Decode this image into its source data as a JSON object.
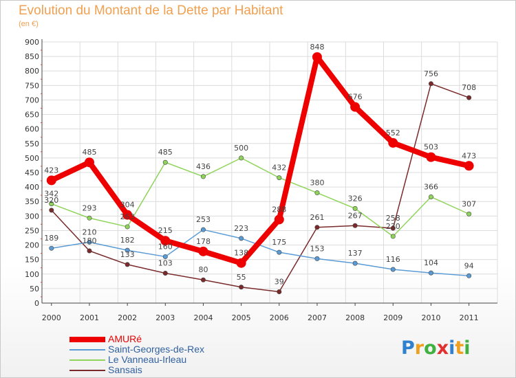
{
  "header": {
    "title": "Evolution du Montant de la Dette par Habitant",
    "subtitle": "(en €)"
  },
  "brand": {
    "letters": [
      "P",
      "r",
      "o",
      "x",
      "i",
      "t",
      "i"
    ],
    "colors": [
      "#3080d0",
      "#f0a020",
      "#40b040",
      "#e03030",
      "#3080d0",
      "#f0a020",
      "#40b040"
    ]
  },
  "chart_data": {
    "type": "line",
    "title": "Evolution du Montant de la Dette par Habitant",
    "subtitle": "(en €)",
    "xlabel": "",
    "ylabel": "",
    "x": [
      "2000",
      "2001",
      "2002",
      "2003",
      "2004",
      "2005",
      "2006",
      "2007",
      "2008",
      "2009",
      "2010",
      "2011"
    ],
    "ylim": [
      0,
      900
    ],
    "yticks": [
      0,
      50,
      100,
      150,
      200,
      250,
      300,
      350,
      400,
      450,
      500,
      550,
      600,
      650,
      700,
      750,
      800,
      850,
      900
    ],
    "grid": true,
    "legend_position": "bottom-left",
    "series": [
      {
        "name": "AMURé",
        "color": "#ee0000",
        "emphasis": true,
        "values": [
          423,
          485,
          304,
          215,
          178,
          138,
          288,
          848,
          676,
          552,
          503,
          473
        ]
      },
      {
        "name": "Saint-Georges-de-Rex",
        "color": "#5b9bd5",
        "values": [
          189,
          210,
          182,
          160,
          253,
          223,
          175,
          153,
          137,
          116,
          104,
          94
        ]
      },
      {
        "name": "Le Vanneau-Irleau",
        "color": "#8fd45a",
        "values": [
          342,
          293,
          263,
          485,
          436,
          500,
          432,
          380,
          326,
          230,
          366,
          307
        ]
      },
      {
        "name": "Sansais",
        "color": "#7a2a2a",
        "values": [
          320,
          180,
          133,
          103,
          80,
          55,
          39,
          261,
          267,
          258,
          756,
          708
        ]
      }
    ]
  }
}
